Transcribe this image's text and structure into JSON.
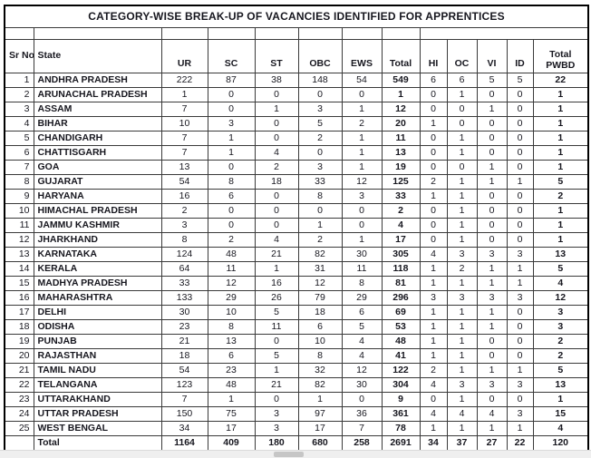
{
  "title": "CATEGORY-WISE BREAK-UP OF VACANCIES IDENTIFIED FOR APPRENTICES",
  "table": {
    "columns": [
      "Sr No",
      "State",
      "UR",
      "SC",
      "ST",
      "OBC",
      "EWS",
      "Total",
      "HI",
      "OC",
      "VI",
      "ID",
      "Total PWBD"
    ],
    "rows": [
      [
        1,
        "ANDHRA PRADESH",
        222,
        87,
        38,
        148,
        54,
        549,
        6,
        6,
        5,
        5,
        22
      ],
      [
        2,
        "ARUNACHAL PRADESH",
        1,
        0,
        0,
        0,
        0,
        1,
        0,
        1,
        0,
        0,
        1
      ],
      [
        3,
        "ASSAM",
        7,
        0,
        1,
        3,
        1,
        12,
        0,
        0,
        1,
        0,
        1
      ],
      [
        4,
        "BIHAR",
        10,
        3,
        0,
        5,
        2,
        20,
        1,
        0,
        0,
        0,
        1
      ],
      [
        5,
        "CHANDIGARH",
        7,
        1,
        0,
        2,
        1,
        11,
        0,
        1,
        0,
        0,
        1
      ],
      [
        6,
        "CHATTISGARH",
        7,
        1,
        4,
        0,
        1,
        13,
        0,
        1,
        0,
        0,
        1
      ],
      [
        7,
        "GOA",
        13,
        0,
        2,
        3,
        1,
        19,
        0,
        0,
        1,
        0,
        1
      ],
      [
        8,
        "GUJARAT",
        54,
        8,
        18,
        33,
        12,
        125,
        2,
        1,
        1,
        1,
        5
      ],
      [
        9,
        "HARYANA",
        16,
        6,
        0,
        8,
        3,
        33,
        1,
        1,
        0,
        0,
        2
      ],
      [
        10,
        "HIMACHAL PRADESH",
        2,
        0,
        0,
        0,
        0,
        2,
        0,
        1,
        0,
        0,
        1
      ],
      [
        11,
        "JAMMU KASHMIR",
        3,
        0,
        0,
        1,
        0,
        4,
        0,
        1,
        0,
        0,
        1
      ],
      [
        12,
        "JHARKHAND",
        8,
        2,
        4,
        2,
        1,
        17,
        0,
        1,
        0,
        0,
        1
      ],
      [
        13,
        "KARNATAKA",
        124,
        48,
        21,
        82,
        30,
        305,
        4,
        3,
        3,
        3,
        13
      ],
      [
        14,
        "KERALA",
        64,
        11,
        1,
        31,
        11,
        118,
        1,
        2,
        1,
        1,
        5
      ],
      [
        15,
        "MADHYA PRADESH",
        33,
        12,
        16,
        12,
        8,
        81,
        1,
        1,
        1,
        1,
        4
      ],
      [
        16,
        "MAHARASHTRA",
        133,
        29,
        26,
        79,
        29,
        296,
        3,
        3,
        3,
        3,
        12
      ],
      [
        17,
        "DELHI",
        30,
        10,
        5,
        18,
        6,
        69,
        1,
        1,
        1,
        0,
        3
      ],
      [
        18,
        "ODISHA",
        23,
        8,
        11,
        6,
        5,
        53,
        1,
        1,
        1,
        0,
        3
      ],
      [
        19,
        "PUNJAB",
        21,
        13,
        0,
        10,
        4,
        48,
        1,
        1,
        0,
        0,
        2
      ],
      [
        20,
        "RAJASTHAN",
        18,
        6,
        5,
        8,
        4,
        41,
        1,
        1,
        0,
        0,
        2
      ],
      [
        21,
        "TAMIL NADU",
        54,
        23,
        1,
        32,
        12,
        122,
        2,
        1,
        1,
        1,
        5
      ],
      [
        22,
        "TELANGANA",
        123,
        48,
        21,
        82,
        30,
        304,
        4,
        3,
        3,
        3,
        13
      ],
      [
        23,
        "UTTARAKHAND",
        7,
        1,
        0,
        1,
        0,
        9,
        0,
        1,
        0,
        0,
        1
      ],
      [
        24,
        "UTTAR PRADESH",
        150,
        75,
        3,
        97,
        36,
        361,
        4,
        4,
        4,
        3,
        15
      ],
      [
        25,
        "WEST BENGAL",
        34,
        17,
        3,
        17,
        7,
        78,
        1,
        1,
        1,
        1,
        4
      ]
    ],
    "total_row": [
      "",
      "Total",
      1164,
      409,
      180,
      680,
      258,
      2691,
      34,
      37,
      27,
      22,
      120
    ]
  },
  "colors": {
    "text": "#17171f",
    "grid_border": "#3a3a3a",
    "outer_border": "#000000",
    "scrollbar_track": "#efefef",
    "scrollbar_thumb": "#c6c6c6"
  }
}
